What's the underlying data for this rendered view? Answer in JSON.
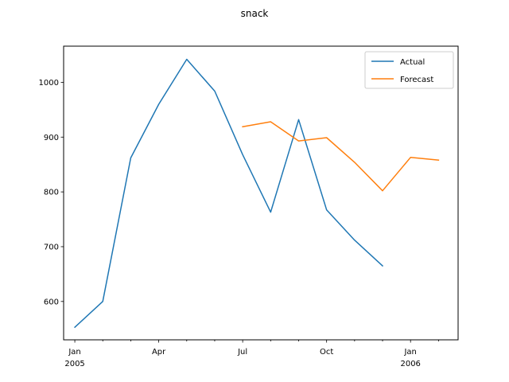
{
  "chart_data": {
    "type": "line",
    "title": "snack",
    "xlabel": "",
    "ylabel": "",
    "x_ticks": [
      {
        "date": "2005-01",
        "label": "Jan",
        "sublabel": "2005"
      },
      {
        "date": "2005-04",
        "label": "Apr",
        "sublabel": ""
      },
      {
        "date": "2005-07",
        "label": "Jul",
        "sublabel": ""
      },
      {
        "date": "2005-10",
        "label": "Oct",
        "sublabel": ""
      },
      {
        "date": "2006-01",
        "label": "Jan",
        "sublabel": "2006"
      }
    ],
    "xlim": [
      "2004-12",
      "2006-03"
    ],
    "y_ticks": [
      600,
      700,
      800,
      900,
      1000
    ],
    "ylim": [
      530,
      1066
    ],
    "grid": false,
    "legend_position": "top-right",
    "series": [
      {
        "name": "Actual",
        "color": "#1f77b4",
        "x": [
          "2005-01",
          "2005-02",
          "2005-03",
          "2005-04",
          "2005-05",
          "2005-06",
          "2005-07",
          "2005-08",
          "2005-09",
          "2005-10",
          "2005-11",
          "2005-12"
        ],
        "values": [
          553,
          600,
          862,
          960,
          1042,
          984,
          868,
          763,
          932,
          767,
          712,
          665
        ]
      },
      {
        "name": "Forecast",
        "color": "#ff7f0e",
        "x": [
          "2005-07",
          "2005-08",
          "2005-09",
          "2005-10",
          "2005-11",
          "2005-12",
          "2006-01",
          "2006-02"
        ],
        "values": [
          919,
          928,
          893,
          899,
          854,
          802,
          863,
          858
        ]
      }
    ]
  }
}
